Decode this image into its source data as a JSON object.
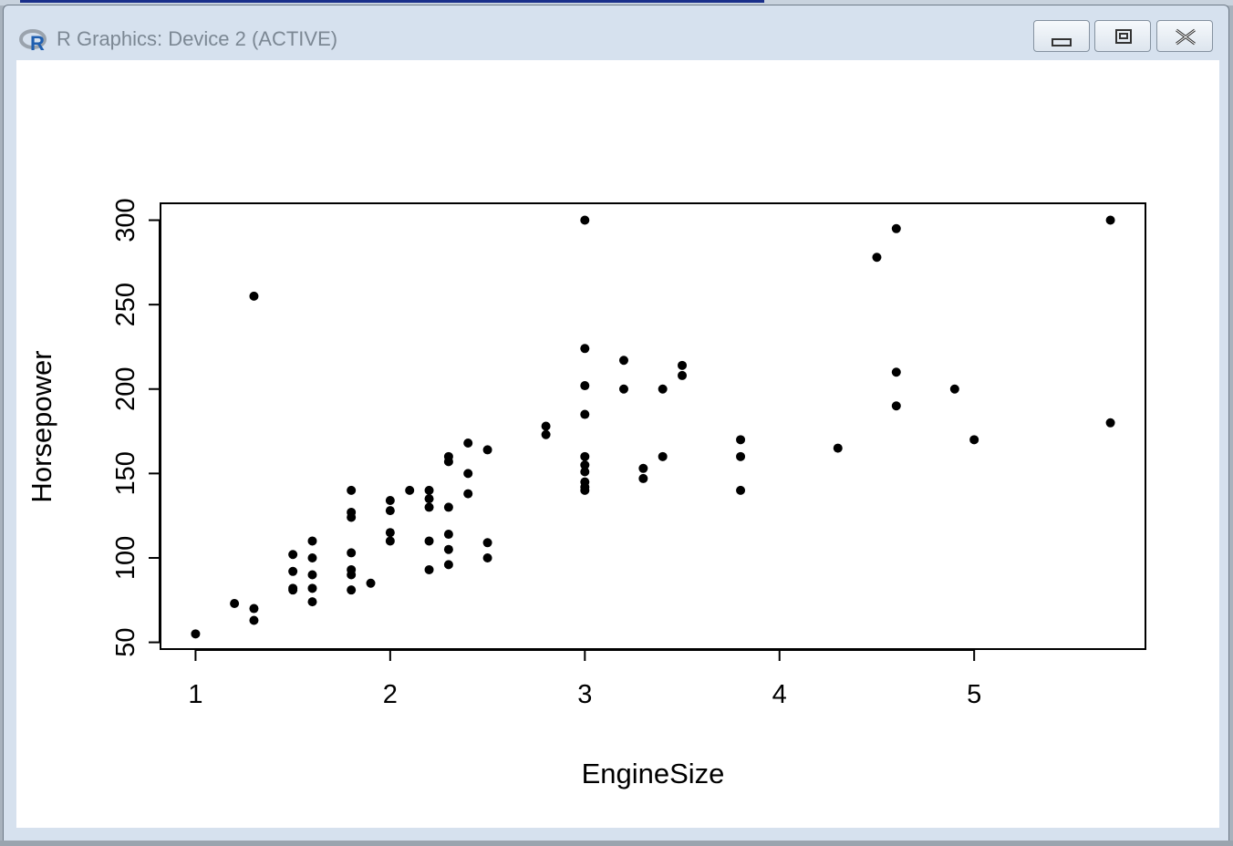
{
  "window": {
    "title": "R Graphics: Device 2 (ACTIVE)",
    "icon": "r-logo-icon",
    "controls": [
      "minimize-icon",
      "restore-icon",
      "close-icon"
    ]
  },
  "colors": {
    "titlebar": "#d6e1ee",
    "plot_bg": "#ffffff",
    "points": "#000000"
  },
  "chart_data": {
    "type": "scatter",
    "title": "",
    "xlabel": "EngineSize",
    "ylabel": "Horsepower",
    "xlim": [
      0.82,
      5.88
    ],
    "ylim": [
      46,
      310
    ],
    "x_ticks": [
      1,
      2,
      3,
      4,
      5
    ],
    "y_ticks": [
      50,
      100,
      150,
      200,
      250,
      300
    ],
    "grid": false,
    "legend": "none",
    "points": [
      {
        "x": 1.0,
        "y": 55
      },
      {
        "x": 1.2,
        "y": 73
      },
      {
        "x": 1.3,
        "y": 70
      },
      {
        "x": 1.3,
        "y": 63
      },
      {
        "x": 1.3,
        "y": 255
      },
      {
        "x": 1.5,
        "y": 102
      },
      {
        "x": 1.5,
        "y": 92
      },
      {
        "x": 1.5,
        "y": 82
      },
      {
        "x": 1.5,
        "y": 81
      },
      {
        "x": 1.6,
        "y": 110
      },
      {
        "x": 1.6,
        "y": 100
      },
      {
        "x": 1.6,
        "y": 90
      },
      {
        "x": 1.6,
        "y": 82
      },
      {
        "x": 1.6,
        "y": 74
      },
      {
        "x": 1.8,
        "y": 140
      },
      {
        "x": 1.8,
        "y": 127
      },
      {
        "x": 1.8,
        "y": 124
      },
      {
        "x": 1.8,
        "y": 103
      },
      {
        "x": 1.8,
        "y": 93
      },
      {
        "x": 1.8,
        "y": 90
      },
      {
        "x": 1.8,
        "y": 81
      },
      {
        "x": 1.9,
        "y": 85
      },
      {
        "x": 2.0,
        "y": 134
      },
      {
        "x": 2.0,
        "y": 128
      },
      {
        "x": 2.0,
        "y": 115
      },
      {
        "x": 2.0,
        "y": 110
      },
      {
        "x": 2.1,
        "y": 140
      },
      {
        "x": 2.2,
        "y": 140
      },
      {
        "x": 2.2,
        "y": 135
      },
      {
        "x": 2.2,
        "y": 130
      },
      {
        "x": 2.2,
        "y": 110
      },
      {
        "x": 2.2,
        "y": 93
      },
      {
        "x": 2.3,
        "y": 160
      },
      {
        "x": 2.3,
        "y": 157
      },
      {
        "x": 2.3,
        "y": 130
      },
      {
        "x": 2.3,
        "y": 114
      },
      {
        "x": 2.3,
        "y": 105
      },
      {
        "x": 2.3,
        "y": 96
      },
      {
        "x": 2.4,
        "y": 168
      },
      {
        "x": 2.4,
        "y": 150
      },
      {
        "x": 2.4,
        "y": 138
      },
      {
        "x": 2.5,
        "y": 164
      },
      {
        "x": 2.5,
        "y": 109
      },
      {
        "x": 2.5,
        "y": 100
      },
      {
        "x": 2.8,
        "y": 178
      },
      {
        "x": 2.8,
        "y": 173
      },
      {
        "x": 3.0,
        "y": 300
      },
      {
        "x": 3.0,
        "y": 224
      },
      {
        "x": 3.0,
        "y": 202
      },
      {
        "x": 3.0,
        "y": 185
      },
      {
        "x": 3.0,
        "y": 160
      },
      {
        "x": 3.0,
        "y": 155
      },
      {
        "x": 3.0,
        "y": 151
      },
      {
        "x": 3.0,
        "y": 145
      },
      {
        "x": 3.0,
        "y": 142
      },
      {
        "x": 3.0,
        "y": 140
      },
      {
        "x": 3.2,
        "y": 217
      },
      {
        "x": 3.2,
        "y": 200
      },
      {
        "x": 3.3,
        "y": 153
      },
      {
        "x": 3.3,
        "y": 147
      },
      {
        "x": 3.4,
        "y": 200
      },
      {
        "x": 3.4,
        "y": 160
      },
      {
        "x": 3.5,
        "y": 214
      },
      {
        "x": 3.5,
        "y": 208
      },
      {
        "x": 3.8,
        "y": 170
      },
      {
        "x": 3.8,
        "y": 160
      },
      {
        "x": 3.8,
        "y": 140
      },
      {
        "x": 4.3,
        "y": 165
      },
      {
        "x": 4.5,
        "y": 278
      },
      {
        "x": 4.6,
        "y": 295
      },
      {
        "x": 4.6,
        "y": 210
      },
      {
        "x": 4.6,
        "y": 190
      },
      {
        "x": 4.9,
        "y": 200
      },
      {
        "x": 5.0,
        "y": 170
      },
      {
        "x": 5.7,
        "y": 300
      },
      {
        "x": 5.7,
        "y": 180
      }
    ]
  }
}
